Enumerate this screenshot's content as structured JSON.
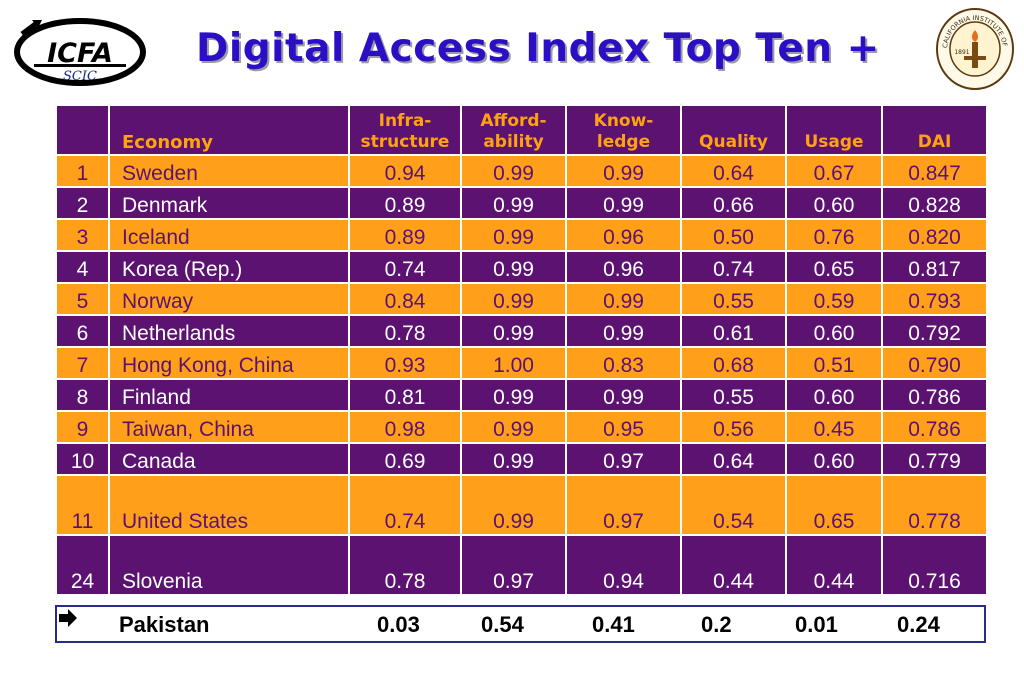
{
  "title": "Digital Access Index Top Ten +",
  "logo_left": {
    "main": "ICFA",
    "sub": "SCIC"
  },
  "logo_right": {
    "ring_text": "CALIFORNIA INSTITUTE OF TECHNOLOGY",
    "year": "1891"
  },
  "table": {
    "headers": {
      "economy": "Economy",
      "infra_1": "Infra-",
      "infra_2": "structure",
      "afford_1": "Afford-",
      "afford_2": "ability",
      "know_1": "Know-",
      "know_2": "ledge",
      "quality": "Quality",
      "usage": "Usage",
      "dai": "DAI"
    },
    "rows": [
      {
        "rank": "1",
        "economy": "Sweden",
        "infra": "0.94",
        "afford": "0.99",
        "know": "0.99",
        "quality": "0.64",
        "usage": "0.67",
        "dai": "0.847"
      },
      {
        "rank": "2",
        "economy": "Denmark",
        "infra": "0.89",
        "afford": "0.99",
        "know": "0.99",
        "quality": "0.66",
        "usage": "0.60",
        "dai": "0.828"
      },
      {
        "rank": "3",
        "economy": "Iceland",
        "infra": "0.89",
        "afford": "0.99",
        "know": "0.96",
        "quality": "0.50",
        "usage": "0.76",
        "dai": "0.820"
      },
      {
        "rank": "4",
        "economy": "Korea (Rep.)",
        "infra": "0.74",
        "afford": "0.99",
        "know": "0.96",
        "quality": "0.74",
        "usage": "0.65",
        "dai": "0.817"
      },
      {
        "rank": "5",
        "economy": "Norway",
        "infra": "0.84",
        "afford": "0.99",
        "know": "0.99",
        "quality": "0.55",
        "usage": "0.59",
        "dai": "0.793"
      },
      {
        "rank": "6",
        "economy": "Netherlands",
        "infra": "0.78",
        "afford": "0.99",
        "know": "0.99",
        "quality": "0.61",
        "usage": "0.60",
        "dai": "0.792"
      },
      {
        "rank": "7",
        "economy": "Hong Kong, China",
        "infra": "0.93",
        "afford": "1.00",
        "know": "0.83",
        "quality": "0.68",
        "usage": "0.51",
        "dai": "0.790"
      },
      {
        "rank": "8",
        "economy": "Finland",
        "infra": "0.81",
        "afford": "0.99",
        "know": "0.99",
        "quality": "0.55",
        "usage": "0.60",
        "dai": "0.786"
      },
      {
        "rank": "9",
        "economy": "Taiwan, China",
        "infra": "0.98",
        "afford": "0.99",
        "know": "0.95",
        "quality": "0.56",
        "usage": "0.45",
        "dai": "0.786"
      },
      {
        "rank": "10",
        "economy": "Canada",
        "infra": "0.69",
        "afford": "0.99",
        "know": "0.97",
        "quality": "0.64",
        "usage": "0.60",
        "dai": "0.779"
      },
      {
        "rank": "11",
        "economy": "United States",
        "infra": "0.74",
        "afford": "0.99",
        "know": "0.97",
        "quality": "0.54",
        "usage": "0.65",
        "dai": "0.778"
      },
      {
        "rank": "24",
        "economy": "Slovenia",
        "infra": "0.78",
        "afford": "0.97",
        "know": "0.94",
        "quality": "0.44",
        "usage": "0.44",
        "dai": "0.716"
      }
    ]
  },
  "footer": {
    "icon": "right-arrow-icon",
    "economy": "Pakistan",
    "infra": "0.03",
    "afford": "0.54",
    "know": "0.41",
    "quality": "0.2",
    "usage": "0.01",
    "dai": "0.24"
  },
  "colors": {
    "purple": "#5b1270",
    "orange": "#ff9f1a",
    "header_text": "#ffa212",
    "title": "#2a0fc4"
  }
}
